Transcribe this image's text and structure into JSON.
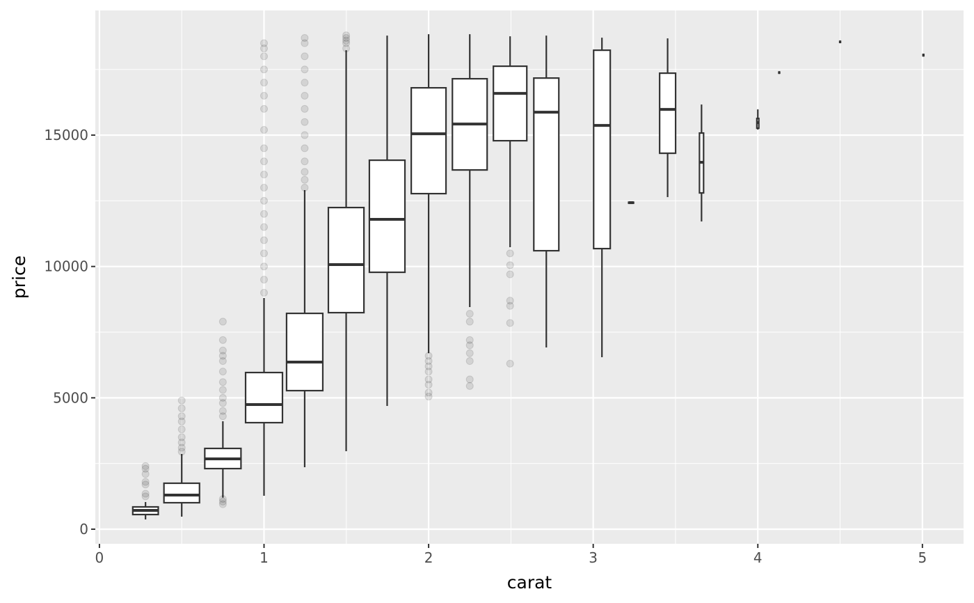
{
  "chart_data": {
    "type": "boxplot",
    "x_label": "carat",
    "y_label": "price",
    "xlim": [
      -0.025,
      5.25
    ],
    "ylim": [
      -557,
      19746
    ],
    "xticks": [
      0,
      1,
      2,
      3,
      4,
      5
    ],
    "yticks": [
      0,
      5000,
      10000,
      15000
    ],
    "x_minor_grid": [
      0.5,
      1.5,
      2.5,
      3.5,
      4.5
    ],
    "y_minor_grid": [
      2500,
      7500,
      12500,
      17500
    ],
    "grid": true,
    "box_color": "#333333",
    "box_fill": "#ffffff",
    "outlier_color": "#000000",
    "boxes": [
      {
        "x": 0.28,
        "width": 0.155,
        "whisker_low": 371,
        "q1": 557,
        "median": 716,
        "q3": 848,
        "whisker_high": 1034,
        "outliers": [
          1250,
          1350,
          1700,
          1800,
          2100,
          2300,
          2400
        ]
      },
      {
        "x": 0.5,
        "width": 0.216,
        "whisker_low": 477,
        "q1": 1007,
        "median": 1299,
        "q3": 1749,
        "whisker_high": 2862,
        "outliers": [
          2950,
          3100,
          3300,
          3500,
          3800,
          4100,
          4300,
          4600,
          4900
        ]
      },
      {
        "x": 0.75,
        "width": 0.22,
        "whisker_low": 1200,
        "q1": 2306,
        "median": 2677,
        "q3": 3074,
        "whisker_high": 4108,
        "outliers": [
          950,
          1050,
          1150,
          4300,
          4500,
          4800,
          5000,
          5300,
          5600,
          6000,
          6400,
          6600,
          6800,
          7200,
          7900
        ]
      },
      {
        "x": 1.0,
        "width": 0.224,
        "whisker_low": 1272,
        "q1": 4055,
        "median": 4744,
        "q3": 5963,
        "whisker_high": 8798,
        "outliers": [
          9000,
          9500,
          10000,
          10500,
          11000,
          11500,
          12000,
          12500,
          13000,
          13500,
          14000,
          14500,
          15200,
          16000,
          16500,
          17000,
          17500,
          18000,
          18300,
          18500
        ]
      },
      {
        "x": 1.247,
        "width": 0.22,
        "whisker_low": 2359,
        "q1": 5274,
        "median": 6360,
        "q3": 8215,
        "whisker_high": 12906,
        "outliers": [
          13000,
          13300,
          13600,
          14000,
          14500,
          15000,
          15500,
          16000,
          16500,
          17000,
          17500,
          18000,
          18500,
          18700
        ]
      },
      {
        "x": 1.499,
        "width": 0.216,
        "whisker_low": 2968,
        "q1": 8242,
        "median": 10070,
        "q3": 12243,
        "whisker_high": 18232,
        "outliers": [
          18300,
          18500,
          18600,
          18700,
          18800
        ]
      },
      {
        "x": 1.748,
        "width": 0.216,
        "whisker_low": 4690,
        "q1": 9779,
        "median": 11793,
        "q3": 14045,
        "whisker_high": 18789,
        "outliers": []
      },
      {
        "x": 2.0,
        "width": 0.211,
        "whisker_low": 6700,
        "q1": 12773,
        "median": 15052,
        "q3": 16801,
        "whisker_high": 18842,
        "outliers": [
          5050,
          5200,
          5500,
          5700,
          6000,
          6200,
          6400,
          6600
        ]
      },
      {
        "x": 2.25,
        "width": 0.211,
        "whisker_low": 8454,
        "q1": 13674,
        "median": 15423,
        "q3": 17146,
        "whisker_high": 18842,
        "outliers": [
          5450,
          5700,
          6400,
          6700,
          7000,
          7200,
          7900,
          8200
        ]
      },
      {
        "x": 2.495,
        "width": 0.203,
        "whisker_low": 10733,
        "q1": 14787,
        "median": 16589,
        "q3": 17623,
        "whisker_high": 18762,
        "outliers": [
          6300,
          7850,
          8500,
          8700,
          9700,
          10050,
          10500
        ]
      },
      {
        "x": 2.715,
        "width": 0.152,
        "whisker_low": 6917,
        "q1": 10600,
        "median": 15874,
        "q3": 17172,
        "whisker_high": 18789,
        "outliers": []
      },
      {
        "x": 3.053,
        "width": 0.101,
        "whisker_low": 6546,
        "q1": 10680,
        "median": 15370,
        "q3": 18232,
        "whisker_high": 18709,
        "outliers": []
      },
      {
        "x": 3.23,
        "width": 0.03,
        "whisker_low": 12400,
        "q1": 12410,
        "median": 12429,
        "q3": 12445,
        "whisker_high": 12460,
        "outliers": []
      },
      {
        "x": 3.452,
        "width": 0.097,
        "whisker_low": 12641,
        "q1": 14310,
        "median": 15980,
        "q3": 17358,
        "whisker_high": 18683,
        "outliers": []
      },
      {
        "x": 3.658,
        "width": 0.025,
        "whisker_low": 11713,
        "q1": 12800,
        "median": 13966,
        "q3": 15079,
        "whisker_high": 16165,
        "outliers": []
      },
      {
        "x": 4.0,
        "width": 0.012,
        "whisker_low": 15211,
        "q1": 15264,
        "median": 15476,
        "q3": 15635,
        "whisker_high": 15980,
        "outliers": []
      },
      {
        "x": 4.13,
        "width": 0.005,
        "whisker_low": 17330,
        "q1": 17360,
        "median": 17384,
        "q3": 17400,
        "whisker_high": 17430,
        "outliers": []
      },
      {
        "x": 4.5,
        "width": 0.005,
        "whisker_low": 18500,
        "q1": 18530,
        "median": 18550,
        "q3": 18570,
        "whisker_high": 18600,
        "outliers": []
      },
      {
        "x": 5.006,
        "width": 0.005,
        "whisker_low": 17990,
        "q1": 18020,
        "median": 18047,
        "q3": 18070,
        "whisker_high": 18100,
        "outliers": []
      }
    ]
  }
}
